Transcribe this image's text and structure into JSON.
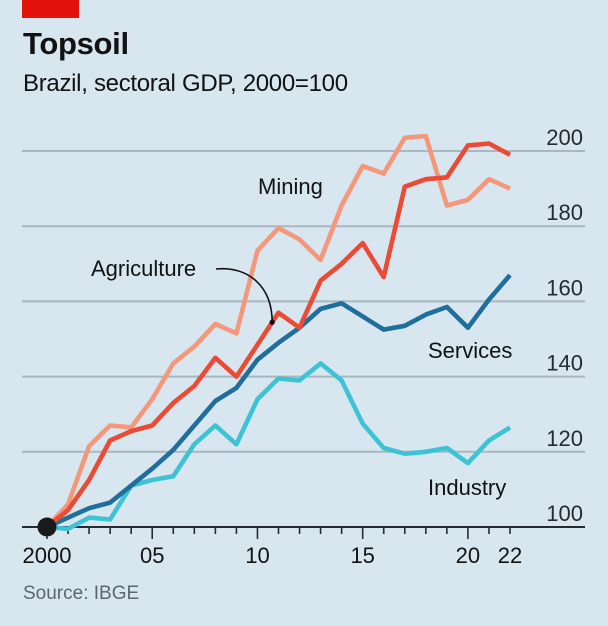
{
  "header": {
    "title": "Topsoil",
    "subtitle": "Brazil, sectoral GDP, 2000=100"
  },
  "footer": {
    "source": "Source: IBGE"
  },
  "colors": {
    "background": "#d7e6ef",
    "brand_tag": "#e3120b",
    "mining": "#f4977a",
    "agriculture": "#eb4b35",
    "services": "#1f6e9c",
    "industry": "#3ec3d5",
    "gridline": "#a9b7c0",
    "axis": "#262a33",
    "start_marker": "#1a1a1a"
  },
  "chart_data": {
    "type": "line",
    "title": "Topsoil",
    "subtitle": "Brazil, sectoral GDP, 2000=100",
    "xlabel": "",
    "ylabel": "",
    "x": [
      2000,
      2001,
      2002,
      2003,
      2004,
      2005,
      2006,
      2007,
      2008,
      2009,
      2010,
      2011,
      2012,
      2013,
      2014,
      2015,
      2016,
      2017,
      2018,
      2019,
      2020,
      2021,
      2022
    ],
    "xlim": [
      2000,
      2022
    ],
    "ylim": [
      100,
      200
    ],
    "yticks": [
      100,
      120,
      140,
      160,
      180,
      200
    ],
    "ytick_labels": [
      "100",
      "120",
      "140",
      "160",
      "180",
      "200"
    ],
    "xticks_major": [
      2000,
      2005,
      2010,
      2015,
      2020,
      2022
    ],
    "xtick_labels": [
      "2000",
      "05",
      "10",
      "15",
      "20",
      "22"
    ],
    "y_axis_side": "right",
    "grid": true,
    "legend": "inline labels",
    "start_marker": {
      "x": 2000,
      "y": 100
    },
    "series": [
      {
        "name": "Mining",
        "key": "mining",
        "values": [
          100,
          106,
          121.5,
          127,
          126.5,
          134,
          143.5,
          148,
          154,
          151.5,
          173.5,
          179.5,
          176.5,
          171,
          185.5,
          196,
          194,
          203.5,
          204,
          185.5,
          187,
          192.5,
          190
        ]
      },
      {
        "name": "Agriculture",
        "key": "agriculture",
        "values": [
          100,
          104.5,
          112.5,
          123,
          125.5,
          127,
          133,
          137.5,
          145,
          140,
          148.5,
          157,
          153,
          165.5,
          170,
          175.5,
          166.5,
          190.5,
          192.5,
          193,
          201.5,
          202,
          199
        ]
      },
      {
        "name": "Services",
        "key": "services",
        "values": [
          100,
          102.5,
          105,
          106.5,
          111,
          115.5,
          120.5,
          127,
          133.5,
          137,
          144.5,
          149,
          153,
          158,
          159.5,
          156,
          152.5,
          153.5,
          156.5,
          158.5,
          153,
          160.5,
          167
        ]
      },
      {
        "name": "Industry",
        "key": "industry",
        "values": [
          100,
          99.5,
          102.5,
          102,
          111,
          112.5,
          113.5,
          122,
          127,
          122,
          134,
          139.5,
          139,
          143.5,
          139,
          127.5,
          121,
          119.5,
          120,
          121,
          117,
          123,
          126.5
        ]
      }
    ],
    "annotations": [
      {
        "text": "Mining",
        "series": "mining"
      },
      {
        "text": "Agriculture",
        "series": "agriculture",
        "arrow_to_year": 2010.7
      },
      {
        "text": "Services",
        "series": "services"
      },
      {
        "text": "Industry",
        "series": "industry"
      }
    ]
  }
}
